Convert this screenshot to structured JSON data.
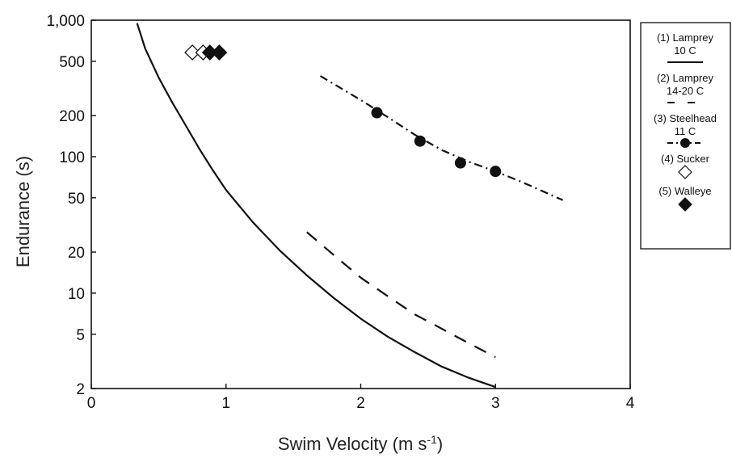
{
  "chart_data": {
    "type": "line",
    "xlabel": "Swim Velocity (m s",
    "xlabel_sup": "-1",
    "xlabel_close": ")",
    "ylabel": "Endurance  (s)",
    "xlim": [
      0,
      4
    ],
    "ylim": [
      2,
      1000
    ],
    "yscale": "log",
    "x_ticks": [
      0,
      1,
      2,
      3,
      4
    ],
    "x_tick_labels": [
      "0",
      "1",
      "2",
      "3",
      "4"
    ],
    "y_ticks": [
      2,
      5,
      10,
      20,
      50,
      100,
      200,
      500,
      1000
    ],
    "y_tick_labels": [
      "2",
      "5",
      "10",
      "20",
      "50",
      "100",
      "200",
      "500",
      "1,000"
    ],
    "grid": false,
    "legend_position": "right",
    "series": [
      {
        "legend_lines": [
          "(1) Lamprey",
          "10 C"
        ],
        "style": "solid",
        "marker": "none",
        "x": [
          0.34,
          0.4,
          0.5,
          0.6,
          0.7,
          0.8,
          0.9,
          1.0,
          1.2,
          1.4,
          1.6,
          1.8,
          2.0,
          2.2,
          2.4,
          2.6,
          2.8,
          3.0
        ],
        "y": [
          950,
          620,
          380,
          250,
          170,
          115,
          80,
          57,
          33,
          20.5,
          13.5,
          9.2,
          6.5,
          4.8,
          3.7,
          2.9,
          2.4,
          2.05
        ]
      },
      {
        "legend_lines": [
          "(2) Lamprey",
          "14-20 C"
        ],
        "style": "dashed",
        "marker": "none",
        "x": [
          1.6,
          1.8,
          2.0,
          2.2,
          2.4,
          2.6,
          2.8,
          3.0
        ],
        "y": [
          28,
          19,
          13,
          9.5,
          7,
          5.5,
          4.3,
          3.4
        ]
      },
      {
        "legend_lines": [
          "(3) Steelhead",
          "11 C"
        ],
        "style": "dashdot",
        "marker": "filled-circle",
        "x": [
          2.12,
          2.44,
          2.74,
          3.0
        ],
        "y": [
          210,
          130,
          90,
          78
        ],
        "curve_x": [
          1.7,
          2.0,
          2.2,
          2.4,
          2.6,
          2.8,
          3.0,
          3.2,
          3.5
        ],
        "curve_y": [
          390,
          260,
          195,
          145,
          112,
          92,
          78,
          65,
          48
        ]
      },
      {
        "legend_lines": [
          "(4) Sucker"
        ],
        "style": "none",
        "marker": "open-diamond",
        "x": [
          0.75,
          0.83
        ],
        "y": [
          580,
          580
        ]
      },
      {
        "legend_lines": [
          "(5) Walleye"
        ],
        "style": "none",
        "marker": "filled-diamond",
        "x": [
          0.88,
          0.95
        ],
        "y": [
          580,
          580
        ]
      }
    ]
  }
}
